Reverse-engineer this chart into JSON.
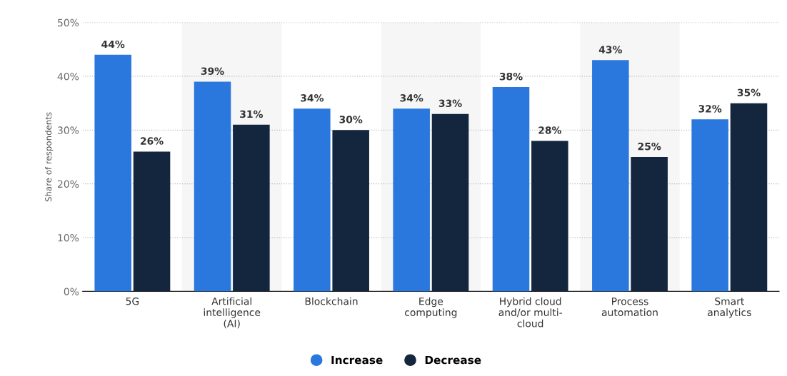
{
  "chart_data": {
    "type": "bar",
    "ylabel": "Share of respondents",
    "categories": [
      "5G",
      "Artificial\nintelligence\n(AI)",
      "Blockchain",
      "Edge\ncomputing",
      "Hybrid cloud\nand/or multi-\ncloud",
      "Process\nautomation",
      "Smart\nanalytics"
    ],
    "series": [
      {
        "name": "Increase",
        "color": "#2a78de",
        "values": [
          44,
          39,
          34,
          34,
          38,
          43,
          32
        ],
        "value_labels": [
          "44%",
          "39%",
          "34%",
          "34%",
          "38%",
          "43%",
          "32%"
        ]
      },
      {
        "name": "Decrease",
        "color": "#13263d",
        "values": [
          26,
          31,
          30,
          33,
          28,
          25,
          35
        ],
        "value_labels": [
          "26%",
          "31%",
          "30%",
          "33%",
          "28%",
          "25%",
          "35%"
        ]
      }
    ],
    "ylim": [
      0,
      50
    ],
    "yticks": [
      {
        "value": 0,
        "label": "0%"
      },
      {
        "value": 10,
        "label": "10%"
      },
      {
        "value": 20,
        "label": "20%"
      },
      {
        "value": 30,
        "label": "30%"
      },
      {
        "value": 40,
        "label": "40%"
      },
      {
        "value": 50,
        "label": "50%"
      }
    ],
    "grid": "y",
    "legend": "bottom"
  }
}
